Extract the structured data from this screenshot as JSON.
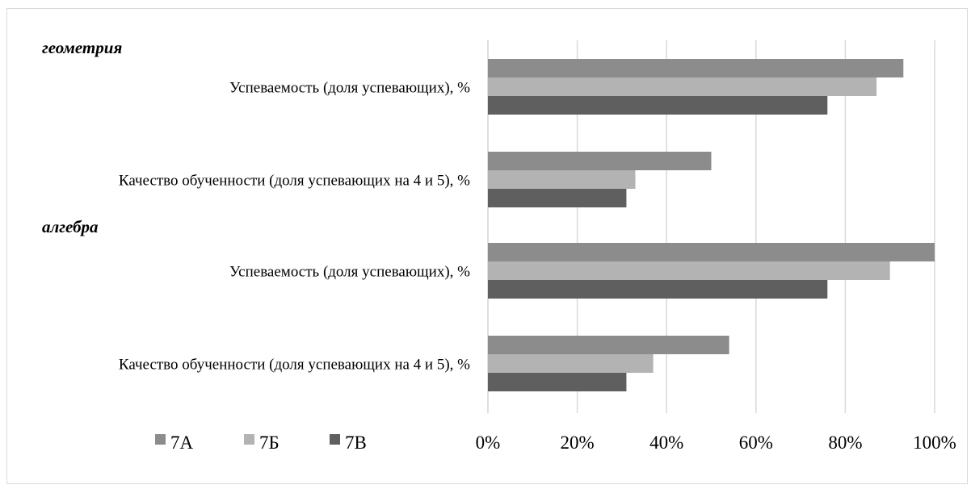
{
  "chart_data": {
    "type": "bar",
    "orientation": "horizontal",
    "title": "",
    "xlabel": "",
    "ylabel": "",
    "xlim": [
      0,
      1
    ],
    "x_ticks": [
      "0%",
      "20%",
      "40%",
      "60%",
      "80%",
      "100%"
    ],
    "grid": "vertical",
    "legend_position": "bottom-left",
    "groups": [
      {
        "name": "геометрия",
        "categories": [
          {
            "label": "Успеваемость (доля успевающих), %",
            "values": {
              "7А": 0.93,
              "7Б": 0.87,
              "7В": 0.76
            }
          },
          {
            "label": "Качество обученности (доля успевающих на 4 и 5), %",
            "values": {
              "7А": 0.5,
              "7Б": 0.33,
              "7В": 0.31
            }
          }
        ]
      },
      {
        "name": "алгебра",
        "categories": [
          {
            "label": "Успеваемость (доля успевающих), %",
            "values": {
              "7А": 1.0,
              "7Б": 0.9,
              "7В": 0.76
            }
          },
          {
            "label": "Качество обученности (доля успевающих на 4 и 5), %",
            "values": {
              "7А": 0.54,
              "7Б": 0.37,
              "7В": 0.31
            }
          }
        ]
      }
    ],
    "series": [
      {
        "name": "7А",
        "color": "#8c8c8c"
      },
      {
        "name": "7Б",
        "color": "#b3b3b3"
      },
      {
        "name": "7В",
        "color": "#5f5f5f"
      }
    ]
  }
}
